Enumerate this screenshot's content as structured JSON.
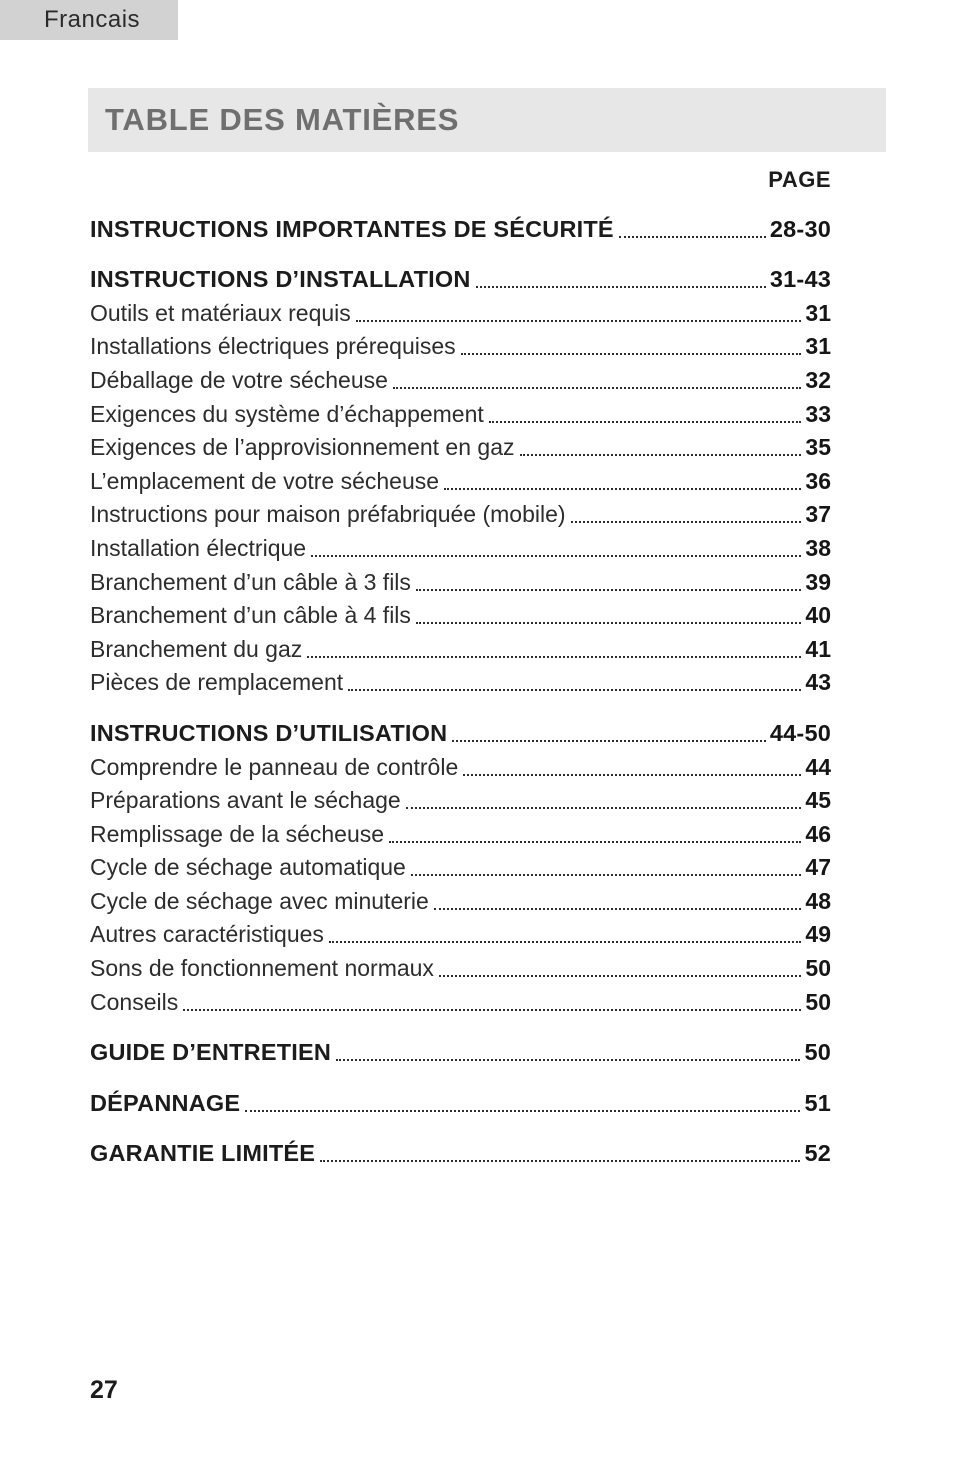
{
  "page": {
    "language_tab": "Francais",
    "title": "TABLE DES MATIÈRES",
    "page_column_header": "PAGE",
    "page_number": "27"
  },
  "toc": {
    "entries": [
      {
        "label": "INSTRUCTIONS IMPORTANTES DE SÉCURITÉ",
        "page": "28-30",
        "section": true
      },
      {
        "label": "INSTRUCTIONS D’INSTALLATION",
        "page": "31-43",
        "section": true
      },
      {
        "label": "Outils et matériaux requis",
        "page": "31",
        "section": false
      },
      {
        "label": "Installations électriques prérequises",
        "page": "31",
        "section": false
      },
      {
        "label": "Déballage de votre sécheuse",
        "page": "32",
        "section": false
      },
      {
        "label": "Exigences du système d’échappement",
        "page": "33",
        "section": false
      },
      {
        "label": "Exigences de l’approvisionnement en gaz",
        "page": "35",
        "section": false
      },
      {
        "label": "L’emplacement de votre sécheuse",
        "page": "36",
        "section": false
      },
      {
        "label": "Instructions pour maison préfabriquée (mobile)",
        "page": "37",
        "section": false
      },
      {
        "label": "Installation électrique",
        "page": "38",
        "section": false
      },
      {
        "label": "Branchement d’un câble à 3 fils",
        "page": "39",
        "section": false
      },
      {
        "label": "Branchement d’un câble à 4 fils",
        "page": "40",
        "section": false
      },
      {
        "label": "Branchement du gaz",
        "page": "41",
        "section": false
      },
      {
        "label": "Pièces de remplacement",
        "page": "43",
        "section": false
      },
      {
        "label": "INSTRUCTIONS D’UTILISATION",
        "page": "44-50",
        "section": true
      },
      {
        "label": "Comprendre le panneau de contrôle",
        "page": "44",
        "section": false
      },
      {
        "label": "Préparations avant le séchage",
        "page": "45",
        "section": false
      },
      {
        "label": "Remplissage de la sécheuse",
        "page": "46",
        "section": false
      },
      {
        "label": "Cycle de séchage automatique",
        "page": "47",
        "section": false
      },
      {
        "label": "Cycle de séchage avec minuterie",
        "page": "48",
        "section": false
      },
      {
        "label": "Autres caractéristiques",
        "page": "49",
        "section": false
      },
      {
        "label": "Sons de fonctionnement normaux",
        "page": "50",
        "section": false
      },
      {
        "label": "Conseils",
        "page": "50",
        "section": false
      },
      {
        "label": "GUIDE D’ENTRETIEN",
        "page": "50",
        "section": true
      },
      {
        "label": "DÉPANNAGE",
        "page": "51",
        "section": true
      },
      {
        "label": "GARANTIE LIMITÉE",
        "page": "52",
        "section": true
      }
    ]
  },
  "colors": {
    "tab_background": "#d2d2d2",
    "header_background": "#e7e7e7",
    "header_text": "#6f6f6f",
    "body_text": "#2d2d2d",
    "bold_text": "#1c1c1c"
  }
}
